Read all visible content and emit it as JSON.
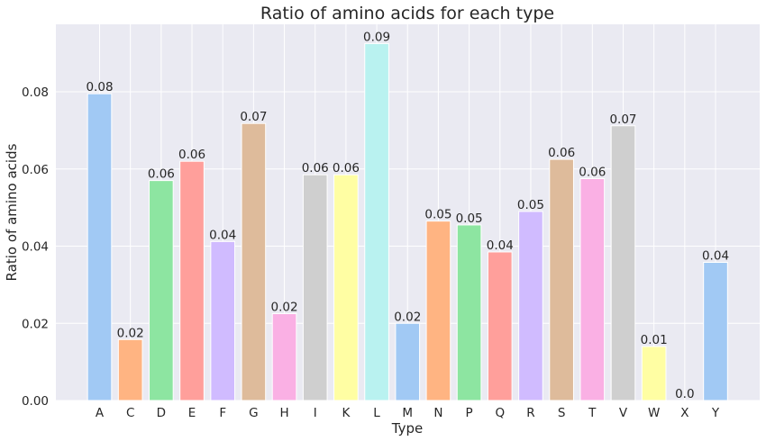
{
  "chart_data": {
    "type": "bar",
    "title": "Ratio of amino acids for each type",
    "xlabel": "Type",
    "ylabel": "Ratio of amino acids",
    "ylim": [
      0,
      0.0975
    ],
    "yticks": [
      0.0,
      0.02,
      0.04,
      0.06,
      0.08
    ],
    "ytick_labels": [
      "0.00",
      "0.02",
      "0.04",
      "0.06",
      "0.08"
    ],
    "grid": true,
    "categories": [
      "A",
      "C",
      "D",
      "E",
      "F",
      "G",
      "H",
      "I",
      "K",
      "L",
      "M",
      "N",
      "P",
      "Q",
      "R",
      "S",
      "T",
      "V",
      "W",
      "X",
      "Y"
    ],
    "values": [
      0.0795,
      0.0158,
      0.057,
      0.062,
      0.0412,
      0.0718,
      0.0225,
      0.0585,
      0.0585,
      0.0925,
      0.02,
      0.0465,
      0.0455,
      0.0385,
      0.049,
      0.0625,
      0.0575,
      0.0712,
      0.014,
      0.0,
      0.0358
    ],
    "data_labels": [
      "0.08",
      "0.02",
      "0.06",
      "0.06",
      "0.04",
      "0.07",
      "0.02",
      "0.06",
      "0.06",
      "0.09",
      "0.02",
      "0.05",
      "0.05",
      "0.04",
      "0.05",
      "0.06",
      "0.06",
      "0.07",
      "0.01",
      "0.0",
      "0.04"
    ],
    "colors": [
      "#a1c9f4",
      "#ffb482",
      "#8de5a1",
      "#ff9f9b",
      "#d0bbff",
      "#debb9b",
      "#fab0e4",
      "#cfcfcf",
      "#fffea3",
      "#b9f2f0",
      "#a1c9f4",
      "#ffb482",
      "#8de5a1",
      "#ff9f9b",
      "#d0bbff",
      "#debb9b",
      "#fab0e4",
      "#cfcfcf",
      "#fffea3",
      "#b9f2f0",
      "#a1c9f4"
    ],
    "style": {
      "background": "#eaeaf2",
      "grid_color": "#ffffff",
      "text_color": "#262626"
    }
  }
}
